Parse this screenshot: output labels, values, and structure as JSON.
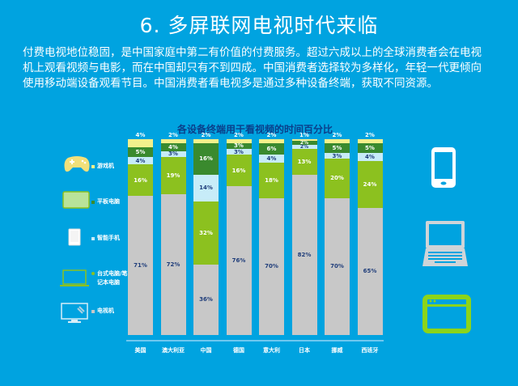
{
  "slide": {
    "title": "6. 多屏联网电视时代来临",
    "paragraph": "付费电视地位稳固，是中国家庭中第二有价值的付费服务。超过六成以上的全球消费者会在电视机上观看视频与电影，而在中国却只有不到四成。中国消费者选择较为多样化，年轻一代更倾向使用移动端设备观看节目。中国消费者看电视多是通过多种设备终端，获取不同资源。"
  },
  "legend": [
    {
      "key": "console",
      "label": "游戏机",
      "color": "#f2f08c",
      "icon": "gamepad-icon"
    },
    {
      "key": "tablet",
      "label": "平板电脑",
      "color": "#3a8a2e",
      "icon": "tablet-icon"
    },
    {
      "key": "phone",
      "label": "智能手机",
      "color": "#c7ecf8",
      "icon": "smartphone-icon"
    },
    {
      "key": "pc",
      "label": "台式电脑/笔记本电脑",
      "label_line1": "台式电脑/笔",
      "label_line2": "记本电脑",
      "color": "#8cc11f",
      "icon": "laptop-icon"
    },
    {
      "key": "tv",
      "label": "电视机",
      "color": "#c8c8c8",
      "icon": "tv-icon"
    }
  ],
  "right_icons": [
    "smartphone-icon",
    "laptop-icon",
    "browser-window-icon"
  ],
  "chart_data": {
    "type": "bar",
    "stacked": true,
    "title": "各设备终端用于看视频的时间百分比",
    "xlabel": "",
    "ylabel": "",
    "ylim": [
      0,
      100
    ],
    "categories": [
      "美国",
      "澳大利亚",
      "中国",
      "德国",
      "意大利",
      "日本",
      "挪威",
      "西班牙"
    ],
    "series": [
      {
        "name": "电视机",
        "color": "#c8c8c8",
        "values": [
          71,
          72,
          36,
          76,
          70,
          82,
          70,
          65
        ]
      },
      {
        "name": "台式电脑/笔记本电脑",
        "color": "#8cc11f",
        "values": [
          16,
          19,
          32,
          16,
          18,
          13,
          20,
          24
        ]
      },
      {
        "name": "智能手机",
        "color": "#c7ecf8",
        "values": [
          4,
          3,
          14,
          3,
          4,
          2,
          3,
          4
        ]
      },
      {
        "name": "平板电脑",
        "color": "#3a8a2e",
        "values": [
          5,
          4,
          16,
          3,
          6,
          2,
          5,
          5
        ]
      },
      {
        "name": "游戏机",
        "color": "#f2f08c",
        "values": [
          4,
          2,
          2,
          2,
          2,
          1,
          2,
          2
        ]
      }
    ],
    "grid": false,
    "legend_position": "left"
  }
}
